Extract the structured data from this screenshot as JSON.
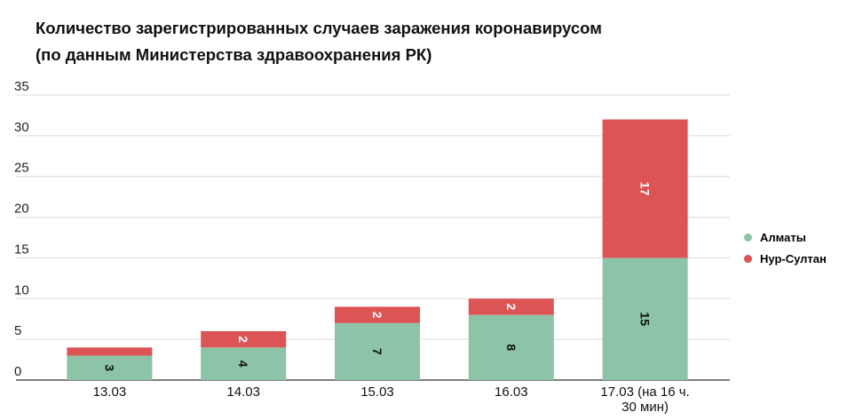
{
  "chart_data": {
    "type": "bar",
    "stacked": true,
    "title_line1": "Количество зарегистрированных случаев заражения коронавирусом",
    "title_line2": "(по данным Министерства здравоохранения РК)",
    "categories": [
      "13.03",
      "14.03",
      "15.03",
      "16.03",
      "17.03 (на 16 ч. 30 мин)"
    ],
    "series": [
      {
        "name": "Алматы",
        "color": "#8dc3a7",
        "values": [
          3,
          4,
          7,
          8,
          15
        ],
        "labels": [
          "3",
          "4",
          "7",
          "8",
          "15"
        ]
      },
      {
        "name": "Нур-Султан",
        "color": "#dd5454",
        "values": [
          1,
          2,
          2,
          2,
          17
        ],
        "labels": [
          "",
          "2",
          "2",
          "2",
          "17"
        ]
      }
    ],
    "yticks": [
      "0",
      "5",
      "10",
      "15",
      "20",
      "25",
      "30",
      "35"
    ],
    "ylim": [
      0,
      35
    ],
    "grid": true,
    "legend_position": "right"
  }
}
